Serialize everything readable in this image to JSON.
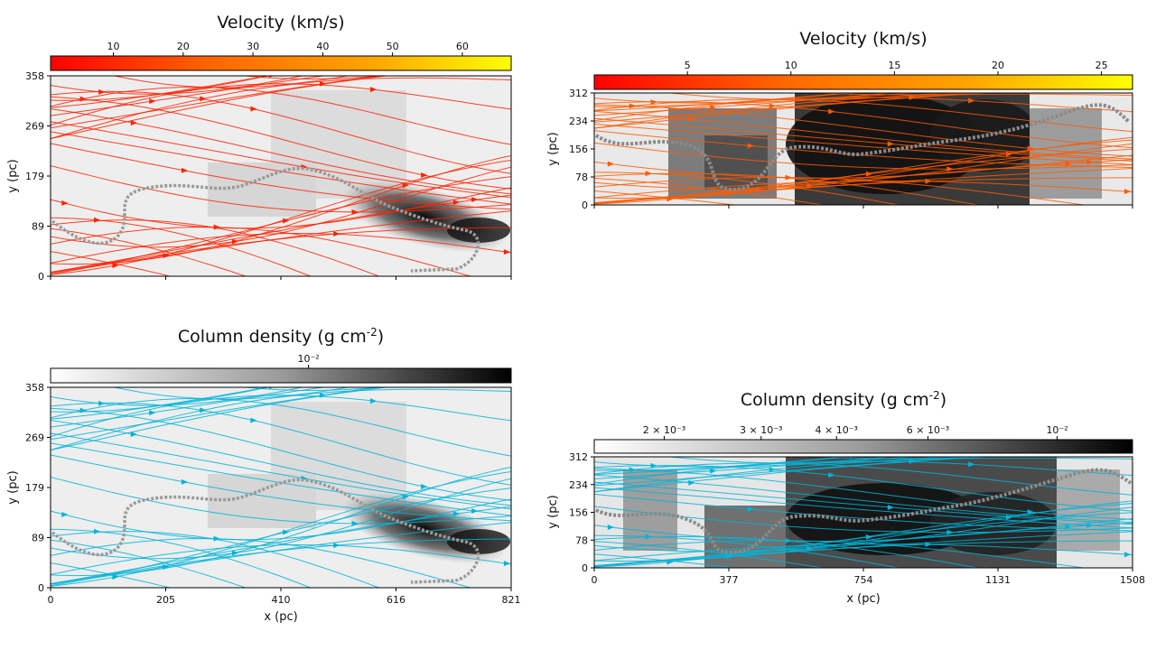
{
  "chart_data": [
    {
      "type": "streamplot",
      "panel": "top-left",
      "colorbar": {
        "title": "Velocity (km/s)",
        "ticks": [
          "10",
          "20",
          "30",
          "40",
          "50",
          "60"
        ],
        "range": [
          1,
          67
        ],
        "colors": [
          "#ff0000",
          "#ff6600",
          "#ffa500",
          "#ffff00"
        ]
      },
      "stream_color": "#ff2200",
      "x_ticks": [
        "",
        "",
        "",
        "",
        ""
      ],
      "x_range": [
        0,
        821
      ],
      "y_ticks": [
        "0",
        "89",
        "179",
        "269",
        "358"
      ],
      "y_range": [
        0,
        358
      ],
      "xlabel": "",
      "ylabel": "y (pc)"
    },
    {
      "type": "streamplot",
      "panel": "top-right",
      "colorbar": {
        "title": "Velocity (km/s)",
        "ticks": [
          "5",
          "10",
          "15",
          "20",
          "25"
        ],
        "range": [
          0.5,
          26.5
        ],
        "colors": [
          "#ff0000",
          "#ff6600",
          "#ffa500",
          "#ffff00"
        ]
      },
      "stream_color": "#ff5a00",
      "x_ticks": [
        "",
        "",
        "",
        "",
        ""
      ],
      "x_range": [
        0,
        1508
      ],
      "y_ticks": [
        "0",
        "78",
        "156",
        "234",
        "312"
      ],
      "y_range": [
        0,
        312
      ],
      "xlabel": "",
      "ylabel": "y (pc)"
    },
    {
      "type": "streamplot",
      "panel": "bottom-left",
      "colorbar": {
        "title": "Column density (g cm",
        "title_sup": "-2",
        "title_end": ")",
        "ticks": [
          "10⁻²"
        ],
        "colors": [
          "#ffffff",
          "#000000"
        ]
      },
      "stream_color": "#00b4d8",
      "x_ticks": [
        "0",
        "205",
        "410",
        "616",
        "821"
      ],
      "x_range": [
        0,
        821
      ],
      "y_ticks": [
        "0",
        "89",
        "179",
        "269",
        "358"
      ],
      "y_range": [
        0,
        358
      ],
      "xlabel": "x (pc)",
      "ylabel": "y (pc)"
    },
    {
      "type": "streamplot",
      "panel": "bottom-right",
      "colorbar": {
        "title": "Column density (g cm",
        "title_sup": "-2",
        "title_end": ")",
        "ticks": [
          "2 × 10⁻³",
          "3 × 10⁻³",
          "4 × 10⁻³",
          "6 × 10⁻³",
          "10⁻²"
        ],
        "colors": [
          "#ffffff",
          "#000000"
        ]
      },
      "stream_color": "#00b4d8",
      "x_ticks": [
        "0",
        "377",
        "754",
        "1131",
        "1508"
      ],
      "x_range": [
        0,
        1508
      ],
      "y_ticks": [
        "0",
        "78",
        "156",
        "234",
        "312"
      ],
      "y_range": [
        0,
        312
      ],
      "xlabel": "x (pc)",
      "ylabel": "y (pc)"
    }
  ]
}
